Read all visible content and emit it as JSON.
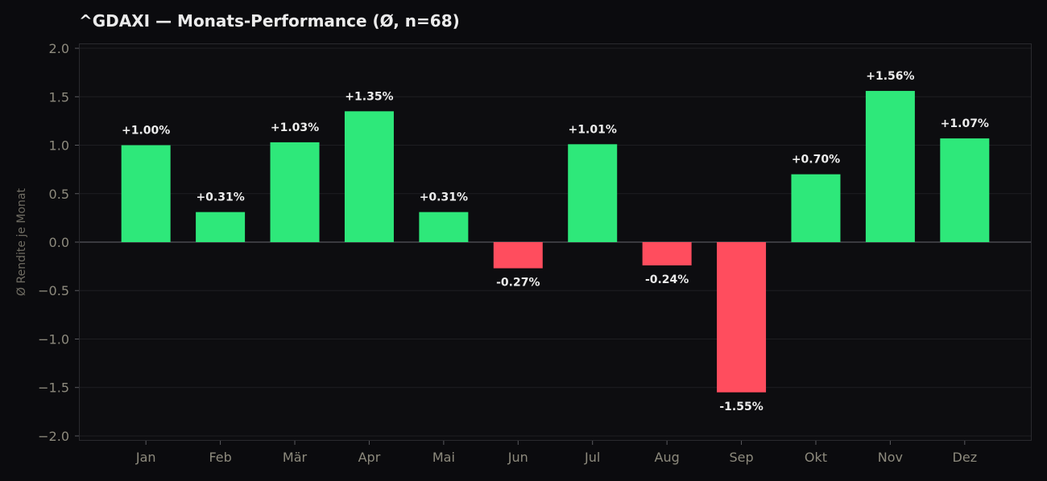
{
  "chart_data": {
    "type": "bar",
    "title": "^GDAXI — Monats-Performance (Ø, n=68)",
    "xlabel": "",
    "ylabel": "Ø Rendite je Monat",
    "categories": [
      "Jan",
      "Feb",
      "Mär",
      "Apr",
      "Mai",
      "Jun",
      "Jul",
      "Aug",
      "Sep",
      "Okt",
      "Nov",
      "Dez"
    ],
    "values": [
      1.0,
      0.31,
      1.03,
      1.35,
      0.31,
      -0.27,
      1.01,
      -0.24,
      -1.55,
      0.7,
      1.56,
      1.07
    ],
    "data_labels": [
      "+1.00%",
      "+0.31%",
      "+1.03%",
      "+1.35%",
      "+0.31%",
      "-0.27%",
      "+1.01%",
      "-0.24%",
      "-1.55%",
      "+0.70%",
      "+1.56%",
      "+1.07%"
    ],
    "yticks": [
      2.0,
      1.5,
      1.0,
      0.5,
      0.0,
      -0.5,
      -1.0,
      -1.5,
      -2.0
    ],
    "ytick_labels": [
      "2.0",
      "1.5",
      "1.0",
      "0.5",
      "0.0",
      "−0.5",
      "−1.0",
      "−1.5",
      "−2.0"
    ],
    "ylim": [
      -2.05,
      2.05
    ],
    "grid": true,
    "legend": "none",
    "colors": {
      "positive": "#2ee87a",
      "negative": "#ff4d5e",
      "background": "#0b0b0e",
      "plot_background": "#0d0d10",
      "grid": "#1e1e22",
      "zero_line": "#4a4a4f",
      "tick_text": "#8d8a7d",
      "label_text": "#ececec"
    }
  }
}
